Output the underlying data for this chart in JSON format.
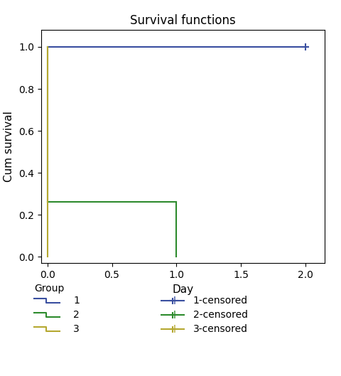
{
  "title": "Survival functions",
  "xlabel": "Day",
  "ylabel": "Cum survival",
  "xlim": [
    -0.05,
    2.15
  ],
  "ylim": [
    -0.03,
    1.08
  ],
  "xticks": [
    0.0,
    0.5,
    1.0,
    1.5,
    2.0
  ],
  "yticks": [
    0.0,
    0.2,
    0.4,
    0.6,
    0.8,
    1.0
  ],
  "groups": {
    "1": {
      "x": [
        0.0,
        2.0
      ],
      "y": [
        1.0,
        1.0
      ],
      "censored_x": [
        2.0
      ],
      "censored_y": [
        1.0
      ],
      "color": "#3a4fa0"
    },
    "2": {
      "x": [
        0.0,
        1.0,
        1.0
      ],
      "y": [
        0.2632,
        0.2632,
        0.0
      ],
      "censored_x": [],
      "censored_y": [],
      "color": "#2d8b2d"
    },
    "3": {
      "x": [
        0.0,
        0.0
      ],
      "y": [
        0.0,
        0.0
      ],
      "censored_x": [],
      "censored_y": [],
      "color": "#b5a830"
    }
  },
  "legend_title": "Group",
  "background_color": "#ffffff",
  "title_fontsize": 12,
  "label_fontsize": 11,
  "tick_fontsize": 10
}
